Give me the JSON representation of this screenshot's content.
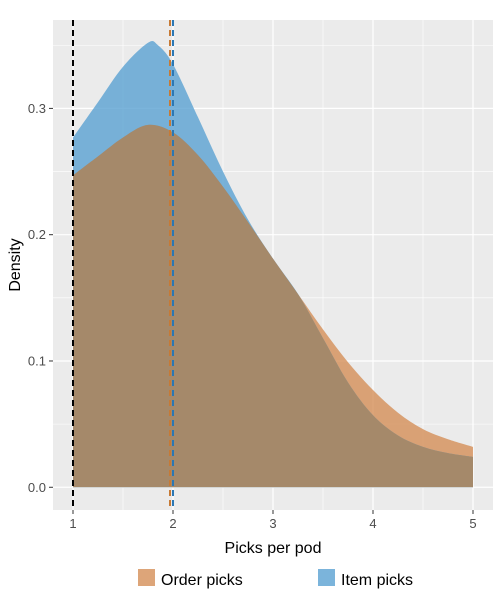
{
  "chart_data": {
    "type": "area",
    "xlabel": "Picks per pod",
    "ylabel": "Density",
    "xlim": [
      0.8,
      5.2
    ],
    "ylim": [
      -0.018,
      0.37
    ],
    "x_ticks": [
      1,
      2,
      3,
      4,
      5
    ],
    "y_ticks": [
      0.0,
      0.1,
      0.2,
      0.3
    ],
    "y_tick_labels": [
      "0.0",
      "0.1",
      "0.2",
      "0.3"
    ],
    "grid": true,
    "legend_position": "bottom",
    "series": [
      {
        "name": "Order picks",
        "color": "#d58f57",
        "alpha": 0.8,
        "points": [
          {
            "x": 1.0,
            "y": 0.247
          },
          {
            "x": 1.25,
            "y": 0.262
          },
          {
            "x": 1.5,
            "y": 0.277
          },
          {
            "x": 1.75,
            "y": 0.287
          },
          {
            "x": 2.0,
            "y": 0.281
          },
          {
            "x": 2.25,
            "y": 0.263
          },
          {
            "x": 2.5,
            "y": 0.238
          },
          {
            "x": 2.75,
            "y": 0.21
          },
          {
            "x": 3.0,
            "y": 0.181
          },
          {
            "x": 3.25,
            "y": 0.153
          },
          {
            "x": 3.5,
            "y": 0.125
          },
          {
            "x": 3.75,
            "y": 0.099
          },
          {
            "x": 4.0,
            "y": 0.077
          },
          {
            "x": 4.25,
            "y": 0.059
          },
          {
            "x": 4.5,
            "y": 0.046
          },
          {
            "x": 4.75,
            "y": 0.038
          },
          {
            "x": 5.0,
            "y": 0.032
          }
        ],
        "mean": 1.97
      },
      {
        "name": "Item picks",
        "color": "#5aa1d2",
        "alpha": 0.8,
        "points": [
          {
            "x": 1.0,
            "y": 0.277
          },
          {
            "x": 1.25,
            "y": 0.305
          },
          {
            "x": 1.5,
            "y": 0.333
          },
          {
            "x": 1.75,
            "y": 0.352
          },
          {
            "x": 1.85,
            "y": 0.35
          },
          {
            "x": 2.0,
            "y": 0.335
          },
          {
            "x": 2.25,
            "y": 0.293
          },
          {
            "x": 2.5,
            "y": 0.25
          },
          {
            "x": 2.75,
            "y": 0.212
          },
          {
            "x": 3.0,
            "y": 0.181
          },
          {
            "x": 3.25,
            "y": 0.153
          },
          {
            "x": 3.5,
            "y": 0.118
          },
          {
            "x": 3.75,
            "y": 0.083
          },
          {
            "x": 4.0,
            "y": 0.057
          },
          {
            "x": 4.25,
            "y": 0.041
          },
          {
            "x": 4.5,
            "y": 0.032
          },
          {
            "x": 4.75,
            "y": 0.027
          },
          {
            "x": 5.0,
            "y": 0.024
          }
        ],
        "mean": 2.0
      }
    ],
    "reference_lines": [
      {
        "x": 1.0,
        "color": "#000000",
        "style": "dashed"
      },
      {
        "x": 1.97,
        "color": "#c77a35",
        "style": "dashed"
      },
      {
        "x": 2.0,
        "color": "#2b77b3",
        "style": "dashed"
      }
    ],
    "colors": {
      "panel_bg": "#ebebeb",
      "grid_major": "#ffffff",
      "overlap_fill": "#a5896a"
    }
  }
}
